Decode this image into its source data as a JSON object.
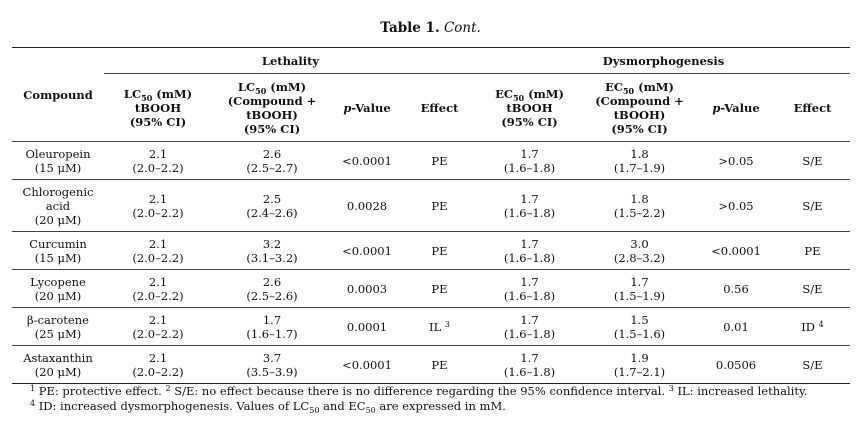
{
  "caption": {
    "label": "Table 1.",
    "text": "Cont."
  },
  "groups": {
    "compound": "Compound",
    "lethality": "Lethality",
    "dysmorphogenesis": "Dysmorphogenesis"
  },
  "columns": {
    "lc50_pre": "LC",
    "lc50_sub": "50",
    "lc50_unit": " (mM)",
    "lc50_line2": "tBOOH",
    "lc50_line3": "(95% CI)",
    "lc50c_line2": "(Compound +",
    "lc50c_line3": "tBOOH)",
    "lc50c_line4": "(95% CI)",
    "p_italic": "p",
    "p_rest": "-Value",
    "effect": "Effect",
    "ec50_pre": "EC",
    "ec50_sub": "50",
    "ec50_unit": " (mM)"
  },
  "rows": [
    {
      "compound": [
        "Oleuropein",
        "(15 μM)"
      ],
      "lc": [
        "2.1",
        "(2.0–2.2)"
      ],
      "lcc": [
        "2.6",
        "(2.5–2.7)"
      ],
      "p1": "<0.0001",
      "e1": "PE",
      "e1sup": "",
      "ec": [
        "1.7",
        "(1.6–1.8)"
      ],
      "ecc": [
        "1.8",
        "(1.7–1.9)"
      ],
      "p2": ">0.05",
      "e2": "S/E",
      "e2sup": ""
    },
    {
      "compound": [
        "Chlorogenic",
        "acid",
        "(20 μM)"
      ],
      "lc": [
        "2.1",
        "(2.0–2.2)"
      ],
      "lcc": [
        "2.5",
        "(2.4–2.6)"
      ],
      "p1": "0.0028",
      "e1": "PE",
      "e1sup": "",
      "ec": [
        "1.7",
        "(1.6–1.8)"
      ],
      "ecc": [
        "1.8",
        "(1.5–2.2)"
      ],
      "p2": ">0.05",
      "e2": "S/E",
      "e2sup": ""
    },
    {
      "compound": [
        "Curcumin",
        "(15 μM)"
      ],
      "lc": [
        "2.1",
        "(2.0–2.2)"
      ],
      "lcc": [
        "3.2",
        "(3.1–3.2)"
      ],
      "p1": "<0.0001",
      "e1": "PE",
      "e1sup": "",
      "ec": [
        "1.7",
        "(1.6–1.8)"
      ],
      "ecc": [
        "3.0",
        "(2.8–3.2)"
      ],
      "p2": "<0.0001",
      "e2": "PE",
      "e2sup": ""
    },
    {
      "compound": [
        "Lycopene",
        "(20 μM)"
      ],
      "lc": [
        "2.1",
        "(2.0–2.2)"
      ],
      "lcc": [
        "2.6",
        "(2.5–2.6)"
      ],
      "p1": "0.0003",
      "e1": "PE",
      "e1sup": "",
      "ec": [
        "1.7",
        "(1.6–1.8)"
      ],
      "ecc": [
        "1.7",
        "(1.5–1.9)"
      ],
      "p2": "0.56",
      "e2": "S/E",
      "e2sup": ""
    },
    {
      "compound": [
        "β-carotene",
        "(25 μM)"
      ],
      "lc": [
        "2.1",
        "(2.0–2.2)"
      ],
      "lcc": [
        "1.7",
        "(1.6–1.7)"
      ],
      "p1": "0.0001",
      "e1": "IL",
      "e1sup": "3",
      "ec": [
        "1.7",
        "(1.6–1.8)"
      ],
      "ecc": [
        "1.5",
        "(1.5–1.6)"
      ],
      "p2": "0.01",
      "e2": "ID",
      "e2sup": "4"
    },
    {
      "compound": [
        "Astaxanthin",
        "(20 μM)"
      ],
      "lc": [
        "2.1",
        "(2.0–2.2)"
      ],
      "lcc": [
        "3.7",
        "(3.5–3.9)"
      ],
      "p1": "<0.0001",
      "e1": "PE",
      "e1sup": "",
      "ec": [
        "1.7",
        "(1.6–1.8)"
      ],
      "ecc": [
        "1.9",
        "(1.7–2.1)"
      ],
      "p2": "0.0506",
      "e2": "S/E",
      "e2sup": ""
    }
  ],
  "footnotes": {
    "n1": "1",
    "t1": " PE: protective effect. ",
    "n2": "2",
    "t2": " S/E: no effect because there is no difference regarding the 95% confidence interval. ",
    "n3": "3",
    "t3": " IL: increased lethality.",
    "n4": "4",
    "t4a": " ID: increased dysmorphogenesis. Values of LC",
    "t4b": " and EC",
    "t4c": " are expressed in mM.",
    "sub50": "50"
  }
}
